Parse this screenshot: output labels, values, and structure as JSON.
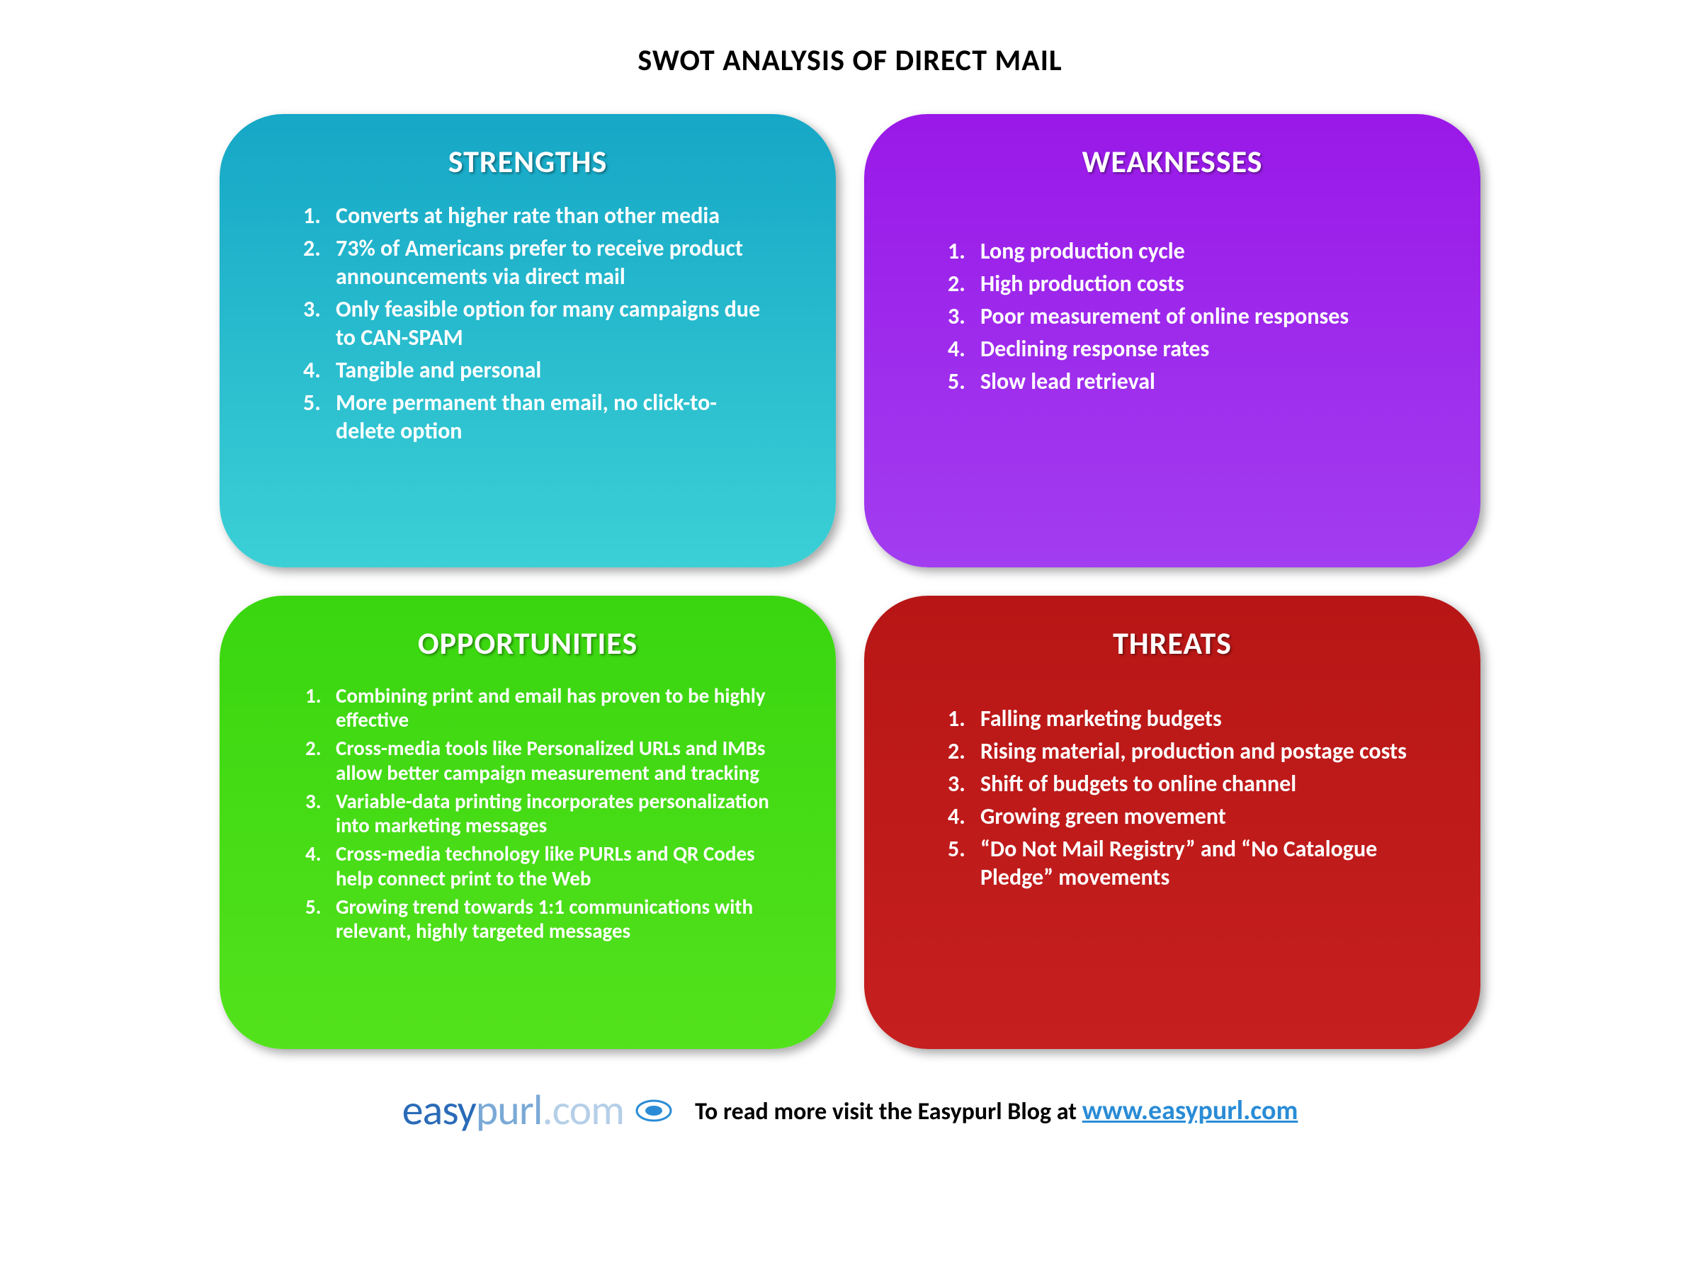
{
  "title": "SWOT ANALYSIS OF DIRECT MAIL",
  "quadrants": {
    "strengths": {
      "label": "STRENGTHS",
      "bg_gradient_top": "#15a7c6",
      "bg_gradient_bottom": "#3bd0d6",
      "items": [
        "Converts at higher rate than other media",
        "73% of Americans prefer to receive product announcements via direct mail",
        "Only feasible option for many campaigns due to CAN-SPAM",
        "Tangible and personal",
        "More permanent  than email, no click-to-delete option"
      ]
    },
    "weaknesses": {
      "label": "WEAKNESSES",
      "bg_gradient_top": "#9a18e8",
      "bg_gradient_bottom": "#a23df0",
      "items": [
        "Long production cycle",
        "High production costs",
        "Poor measurement of online responses",
        "Declining response rates",
        "Slow lead retrieval"
      ]
    },
    "opportunities": {
      "label": "OPPORTUNITIES",
      "bg_gradient_top": "#39d60f",
      "bg_gradient_bottom": "#53e21c",
      "items": [
        "Combining print and email has proven to be highly effective",
        "Cross-media tools like Personalized URLs and IMBs allow better campaign measurement and tracking",
        "Variable-data printing  incorporates personalization into marketing messages",
        "Cross-media technology like PURLs and QR Codes help  connect print to the Web",
        "Growing trend towards 1:1 communications  with relevant, highly targeted messages"
      ]
    },
    "threats": {
      "label": "THREATS",
      "bg_gradient_top": "#b81616",
      "bg_gradient_bottom": "#c61f1f",
      "items": [
        "Falling marketing budgets",
        "Rising material, production and postage costs",
        "Shift of budgets to online channel",
        "Growing green movement",
        "“Do Not Mail Registry” and “No Catalogue Pledge” movements"
      ]
    }
  },
  "styling": {
    "type": "infographic",
    "layout": "2x2-grid",
    "background_color": "#ffffff",
    "title_color": "#000000",
    "title_fontsize": 42,
    "quad_border_radius": 90,
    "quad_title_fontsize": 44,
    "quad_item_fontsize": 32,
    "quad_text_color": "#ffffff",
    "shadow": "6px 6px 14px rgba(0,0,0,0.35)"
  },
  "footer": {
    "logo_parts": {
      "easy": "easy",
      "purl": "purl",
      "dotcom": ".com"
    },
    "logo_colors": {
      "easy": "#2a6bb8",
      "purl": "#7aa9d6",
      "dotcom": "#b5cfe8",
      "icon_stroke": "#2a8cd6"
    },
    "text": "To read more visit the Easypurl Blog at ",
    "link_label": "www.easypurl.com"
  }
}
